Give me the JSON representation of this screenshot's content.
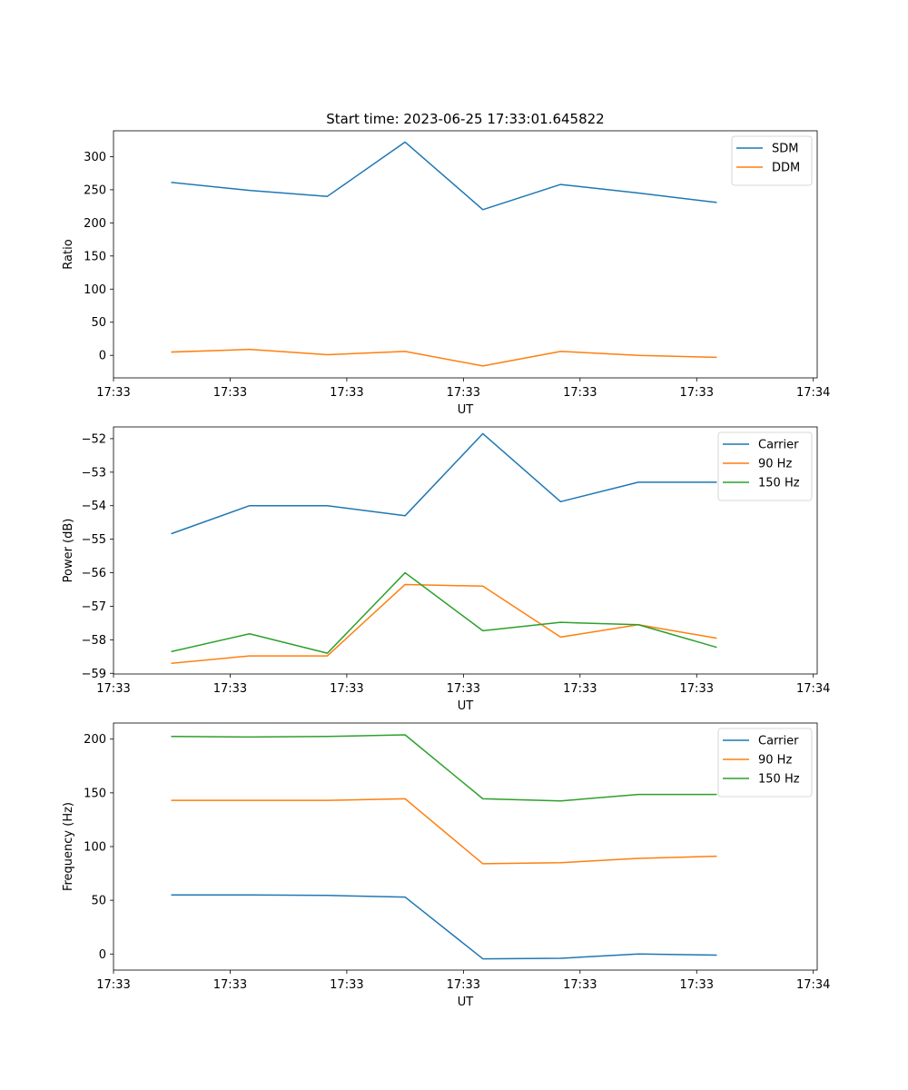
{
  "chart_data": [
    {
      "type": "line",
      "title": "Start time: 2023-06-25 17:33:01.645822",
      "xlabel": "UT",
      "ylabel": "Ratio",
      "x": [
        1,
        2,
        3,
        4,
        5,
        6,
        7,
        8
      ],
      "xlim": [
        0.25,
        9.3
      ],
      "xticks": [
        {
          "x": 0.25,
          "label": "17:33"
        },
        {
          "x": 1.75,
          "label": "17:33"
        },
        {
          "x": 3.25,
          "label": "17:33"
        },
        {
          "x": 4.75,
          "label": "17:33"
        },
        {
          "x": 6.25,
          "label": "17:33"
        },
        {
          "x": 7.75,
          "label": "17:33"
        },
        {
          "x": 9.25,
          "label": "17:34"
        }
      ],
      "ylim": [
        -34,
        339
      ],
      "yticks": [
        0,
        50,
        100,
        150,
        200,
        250,
        300
      ],
      "legend": "top-right",
      "series": [
        {
          "name": "SDM",
          "color": "#1f77b4",
          "values": [
            261,
            249,
            240,
            322,
            220,
            258,
            245,
            231
          ]
        },
        {
          "name": "DDM",
          "color": "#ff7f0e",
          "values": [
            5,
            9,
            1,
            6,
            -16,
            6,
            0,
            -3
          ]
        }
      ]
    },
    {
      "type": "line",
      "title": "",
      "xlabel": "UT",
      "ylabel": "Power (dB)",
      "x": [
        1,
        2,
        3,
        4,
        5,
        6,
        7,
        8
      ],
      "xlim": [
        0.25,
        9.3
      ],
      "xticks": [
        {
          "x": 0.25,
          "label": "17:33"
        },
        {
          "x": 1.75,
          "label": "17:33"
        },
        {
          "x": 3.25,
          "label": "17:33"
        },
        {
          "x": 4.75,
          "label": "17:33"
        },
        {
          "x": 6.25,
          "label": "17:33"
        },
        {
          "x": 7.75,
          "label": "17:33"
        },
        {
          "x": 9.25,
          "label": "17:34"
        }
      ],
      "ylim": [
        -59.02,
        -51.65
      ],
      "yticks": [
        -59,
        -58,
        -57,
        -56,
        -55,
        -54,
        -53,
        -52
      ],
      "legend": "top-right",
      "series": [
        {
          "name": "Carrier",
          "color": "#1f77b4",
          "values": [
            -54.83,
            -54.0,
            -54.0,
            -54.3,
            -51.85,
            -53.88,
            -53.3,
            -53.3
          ]
        },
        {
          "name": "90 Hz",
          "color": "#ff7f0e",
          "values": [
            -58.7,
            -58.48,
            -58.48,
            -56.35,
            -56.4,
            -57.92,
            -57.55,
            -57.95
          ]
        },
        {
          "name": "150 Hz",
          "color": "#2ca02c",
          "values": [
            -58.35,
            -57.82,
            -58.4,
            -56.0,
            -57.73,
            -57.48,
            -57.55,
            -58.22
          ]
        }
      ]
    },
    {
      "type": "line",
      "title": "",
      "xlabel": "UT",
      "ylabel": "Frequency (Hz)",
      "x": [
        1,
        2,
        3,
        4,
        5,
        6,
        7,
        8
      ],
      "xlim": [
        0.25,
        9.3
      ],
      "xticks": [
        {
          "x": 0.25,
          "label": "17:33"
        },
        {
          "x": 1.75,
          "label": "17:33"
        },
        {
          "x": 3.25,
          "label": "17:33"
        },
        {
          "x": 4.75,
          "label": "17:33"
        },
        {
          "x": 6.25,
          "label": "17:33"
        },
        {
          "x": 7.75,
          "label": "17:33"
        },
        {
          "x": 9.25,
          "label": "17:34"
        }
      ],
      "ylim": [
        -15,
        215
      ],
      "yticks": [
        0,
        50,
        100,
        150,
        200
      ],
      "legend": "top-right",
      "series": [
        {
          "name": "Carrier",
          "color": "#1f77b4",
          "values": [
            55,
            55,
            54.5,
            53,
            -4.5,
            -4,
            0,
            -1
          ]
        },
        {
          "name": "90 Hz",
          "color": "#ff7f0e",
          "values": [
            143,
            143,
            143,
            144.5,
            84,
            85,
            89,
            91
          ]
        },
        {
          "name": "150 Hz",
          "color": "#2ca02c",
          "values": [
            202.5,
            202,
            202.5,
            204,
            144.5,
            142.5,
            148.5,
            148.5
          ]
        }
      ]
    }
  ]
}
